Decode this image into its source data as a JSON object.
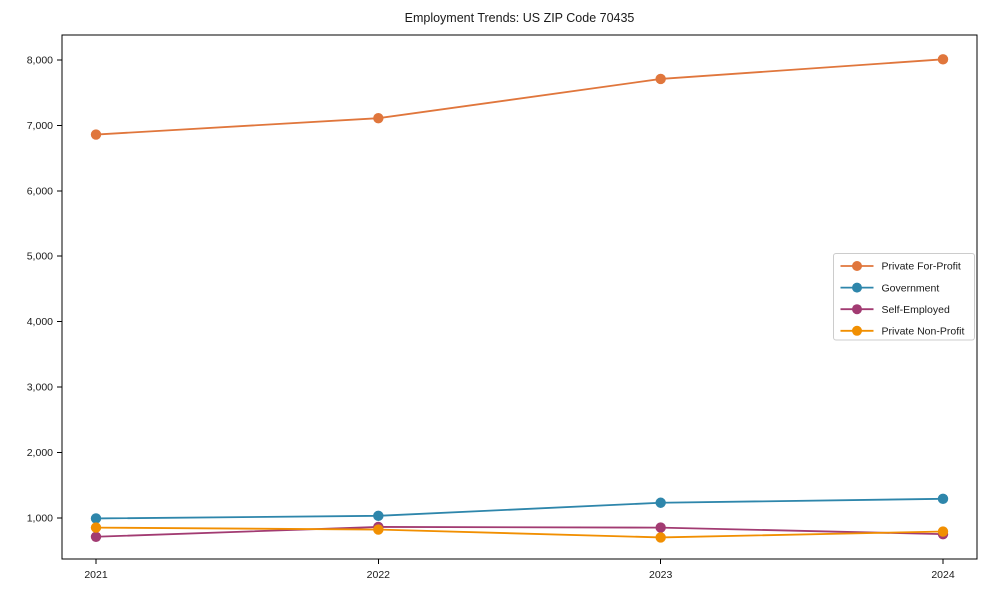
{
  "chart_data": {
    "type": "line",
    "title": "Employment Trends: US ZIP Code 70435",
    "categories": [
      "2021",
      "2022",
      "2023",
      "2024"
    ],
    "series": [
      {
        "name": "Private For-Profit",
        "color": "#E0763C",
        "values": [
          6860,
          7110,
          7710,
          8010
        ]
      },
      {
        "name": "Government",
        "color": "#2E86AB",
        "values": [
          990,
          1030,
          1230,
          1290
        ]
      },
      {
        "name": "Self-Employed",
        "color": "#A23B72",
        "values": [
          710,
          860,
          850,
          750
        ]
      },
      {
        "name": "Private Non-Profit",
        "color": "#F18F01",
        "values": [
          850,
          820,
          700,
          790
        ]
      }
    ],
    "yticks": [
      1000,
      2000,
      3000,
      4000,
      5000,
      6000,
      7000,
      8000
    ],
    "ytick_labels": [
      "1,000",
      "2,000",
      "3,000",
      "4,000",
      "5,000",
      "6,000",
      "7,000",
      "8,000"
    ],
    "ylim": [
      370,
      8382
    ],
    "xlabel": "",
    "ylabel": "",
    "grid": false,
    "legend_position": "center right",
    "frame_color": "#000000",
    "legend_border_color": "#cccccc",
    "legend_background": "#ffffff"
  }
}
